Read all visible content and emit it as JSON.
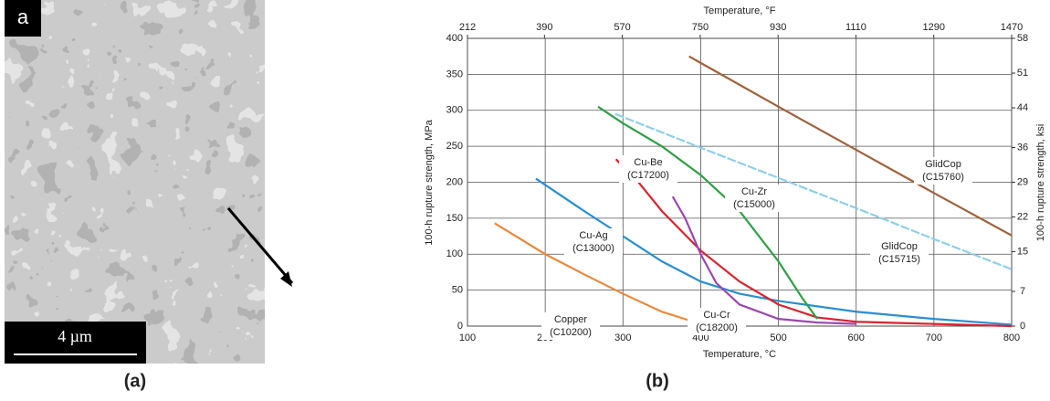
{
  "panel_a": {
    "label": "a",
    "scale_bar": "4 µm",
    "caption": "(a)"
  },
  "panel_b_caption": "(b)",
  "chart_data": {
    "type": "line",
    "x_label": "Temperature, °C",
    "x2_label": "Temperature, °F",
    "y_label": "100-h rupture strength, MPa",
    "y2_label": "100-h rupture strength, ksi",
    "xlim": [
      100,
      800
    ],
    "xticks": [
      100,
      200,
      300,
      400,
      500,
      600,
      700,
      800
    ],
    "x2lim": [
      212,
      1470
    ],
    "x2ticks": [
      212,
      390,
      570,
      750,
      930,
      1110,
      1290,
      1470
    ],
    "ylim": [
      0,
      400
    ],
    "yticks": [
      0,
      50,
      100,
      150,
      200,
      250,
      300,
      350,
      400
    ],
    "y2lim": [
      0,
      58
    ],
    "y2ticks": [
      0,
      7,
      15,
      22,
      29,
      36,
      44,
      51,
      58
    ],
    "grid": true,
    "series": [
      {
        "name": "Copper",
        "alloy": "(C10200)",
        "color": "#e8893a",
        "x": [
          135,
          200,
          250,
          300,
          350,
          400,
          450
        ],
        "values": [
          143,
          100,
          72,
          45,
          20,
          3,
          0
        ]
      },
      {
        "name": "Cu-Ag",
        "alloy": "(C13000)",
        "color": "#2a8fd0",
        "x": [
          188,
          250,
          300,
          350,
          400,
          450,
          500,
          600,
          700,
          800
        ],
        "values": [
          205,
          160,
          125,
          90,
          62,
          45,
          35,
          20,
          10,
          2
        ]
      },
      {
        "name": "Cu-Be",
        "alloy": "(C17200)",
        "color": "#d8252e",
        "x": [
          291,
          320,
          350,
          400,
          450,
          500,
          550,
          600,
          700,
          800
        ],
        "values": [
          232,
          200,
          160,
          105,
          62,
          30,
          12,
          6,
          3,
          0
        ]
      },
      {
        "name": "Cu-Cr",
        "alloy": "(C18200)",
        "color": "#9b45b0",
        "x": [
          364,
          380,
          400,
          420,
          450,
          500,
          550,
          600
        ],
        "values": [
          180,
          150,
          100,
          60,
          30,
          10,
          5,
          3
        ]
      },
      {
        "name": "Cu-Zr",
        "alloy": "(C15000)",
        "color": "#2f9e45",
        "x": [
          268,
          300,
          350,
          400,
          450,
          500,
          530,
          550
        ],
        "values": [
          305,
          282,
          250,
          210,
          160,
          90,
          40,
          10
        ]
      },
      {
        "name": "GlidCop",
        "alloy": "(C15715)",
        "color": "#8fd0e8",
        "x": [
          290,
          400,
          500,
          600,
          700,
          800
        ],
        "values": [
          295,
          248,
          206,
          164,
          121,
          79
        ]
      },
      {
        "name": "GlidCop",
        "alloy": "(C15760)",
        "color": "#a0623c",
        "x": [
          385,
          500,
          600,
          700,
          800
        ],
        "values": [
          375,
          305,
          245,
          185,
          126
        ]
      }
    ]
  }
}
